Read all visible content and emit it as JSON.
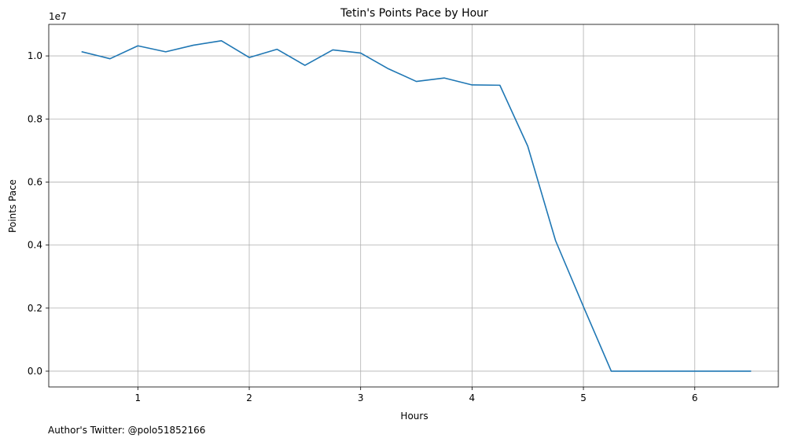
{
  "chart_data": {
    "type": "line",
    "title": "Tetin's Points Pace by Hour",
    "xlabel": "Hours",
    "ylabel": "Points Pace",
    "y_offset_label": "1e7",
    "footer": "Author's Twitter: @polo51852166",
    "grid": true,
    "xlim": [
      0.2,
      6.75
    ],
    "ylim": [
      -0.05,
      1.1
    ],
    "y_scale": 10000000,
    "x_ticks": [
      1,
      2,
      3,
      4,
      5,
      6
    ],
    "x_tick_labels": [
      "1",
      "2",
      "3",
      "4",
      "5",
      "6"
    ],
    "y_ticks": [
      0.0,
      0.2,
      0.4,
      0.6,
      0.8,
      1.0
    ],
    "y_tick_labels": [
      "0.0",
      "0.2",
      "0.4",
      "0.6",
      "0.8",
      "1.0"
    ],
    "series": [
      {
        "color": "#1f77b4",
        "x": [
          0.5,
          0.75,
          1.0,
          1.25,
          1.5,
          1.75,
          2.0,
          2.25,
          2.5,
          2.75,
          3.0,
          3.25,
          3.5,
          3.75,
          4.0,
          4.25,
          4.5,
          4.75,
          5.0,
          5.25,
          5.5,
          5.75,
          6.0,
          6.25,
          6.5
        ],
        "values": [
          1.013,
          0.991,
          1.032,
          1.013,
          1.034,
          1.048,
          0.995,
          1.021,
          0.97,
          1.019,
          1.009,
          0.959,
          0.919,
          0.93,
          0.908,
          0.907,
          0.714,
          0.414,
          0.205,
          0.0,
          0.0,
          0.0,
          0.0,
          0.0,
          0.0
        ]
      }
    ]
  }
}
